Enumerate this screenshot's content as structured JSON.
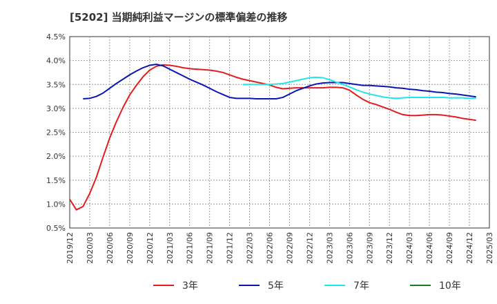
{
  "title": "[5202]  当期純利益マージンの標準偏差の推移",
  "chart_data": {
    "type": "line",
    "title": "[5202]  当期純利益マージンの標準偏差の推移",
    "xlabel": "",
    "ylabel": "",
    "ylim": [
      0.5,
      4.5
    ],
    "yticks": [
      "0.5%",
      "1.0%",
      "1.5%",
      "2.0%",
      "2.5%",
      "3.0%",
      "3.5%",
      "4.0%",
      "4.5%"
    ],
    "ytick_values": [
      0.5,
      1.0,
      1.5,
      2.0,
      2.5,
      3.0,
      3.5,
      4.0,
      4.5
    ],
    "xticks": [
      "2019/12",
      "2020/03",
      "2020/06",
      "2020/09",
      "2020/12",
      "2021/03",
      "2021/06",
      "2021/09",
      "2021/12",
      "2022/03",
      "2022/06",
      "2022/09",
      "2022/12",
      "2023/03",
      "2023/06",
      "2023/09",
      "2023/12",
      "2024/03",
      "2024/06",
      "2024/09",
      "2024/12",
      "2025/03"
    ],
    "grid": true,
    "legend_position": "bottom",
    "series": [
      {
        "name": "3年",
        "color": "#e41a1c",
        "points": [
          [
            "2019/12",
            1.1
          ],
          [
            "2020/01",
            0.88
          ],
          [
            "2020/02",
            0.95
          ],
          [
            "2020/03",
            1.22
          ],
          [
            "2020/04",
            1.56
          ],
          [
            "2020/05",
            1.98
          ],
          [
            "2020/06",
            2.38
          ],
          [
            "2020/07",
            2.72
          ],
          [
            "2020/08",
            3.02
          ],
          [
            "2020/09",
            3.28
          ],
          [
            "2020/10",
            3.48
          ],
          [
            "2020/11",
            3.66
          ],
          [
            "2020/12",
            3.8
          ],
          [
            "2021/01",
            3.88
          ],
          [
            "2021/02",
            3.91
          ],
          [
            "2021/03",
            3.9
          ],
          [
            "2021/04",
            3.88
          ],
          [
            "2021/05",
            3.85
          ],
          [
            "2021/06",
            3.83
          ],
          [
            "2021/07",
            3.82
          ],
          [
            "2021/08",
            3.81
          ],
          [
            "2021/09",
            3.8
          ],
          [
            "2021/10",
            3.78
          ],
          [
            "2021/11",
            3.75
          ],
          [
            "2021/12",
            3.7
          ],
          [
            "2022/01",
            3.65
          ],
          [
            "2022/02",
            3.61
          ],
          [
            "2022/03",
            3.58
          ],
          [
            "2022/04",
            3.55
          ],
          [
            "2022/05",
            3.52
          ],
          [
            "2022/06",
            3.49
          ],
          [
            "2022/07",
            3.44
          ],
          [
            "2022/08",
            3.41
          ],
          [
            "2022/09",
            3.42
          ],
          [
            "2022/10",
            3.43
          ],
          [
            "2022/11",
            3.43
          ],
          [
            "2022/12",
            3.43
          ],
          [
            "2023/01",
            3.43
          ],
          [
            "2023/02",
            3.43
          ],
          [
            "2023/03",
            3.44
          ],
          [
            "2023/04",
            3.44
          ],
          [
            "2023/05",
            3.43
          ],
          [
            "2023/06",
            3.38
          ],
          [
            "2023/07",
            3.28
          ],
          [
            "2023/08",
            3.19
          ],
          [
            "2023/09",
            3.12
          ],
          [
            "2023/10",
            3.08
          ],
          [
            "2023/11",
            3.03
          ],
          [
            "2023/12",
            2.98
          ],
          [
            "2024/01",
            2.92
          ],
          [
            "2024/02",
            2.87
          ],
          [
            "2024/03",
            2.85
          ],
          [
            "2024/04",
            2.85
          ],
          [
            "2024/05",
            2.86
          ],
          [
            "2024/06",
            2.87
          ],
          [
            "2024/07",
            2.87
          ],
          [
            "2024/08",
            2.86
          ],
          [
            "2024/09",
            2.84
          ],
          [
            "2024/10",
            2.82
          ],
          [
            "2024/11",
            2.79
          ],
          [
            "2024/12",
            2.77
          ],
          [
            "2025/01",
            2.75
          ]
        ]
      },
      {
        "name": "5年",
        "color": "#0a14b4",
        "points": [
          [
            "2020/02",
            3.2
          ],
          [
            "2020/03",
            3.21
          ],
          [
            "2020/04",
            3.25
          ],
          [
            "2020/05",
            3.32
          ],
          [
            "2020/06",
            3.42
          ],
          [
            "2020/07",
            3.52
          ],
          [
            "2020/08",
            3.61
          ],
          [
            "2020/09",
            3.7
          ],
          [
            "2020/10",
            3.78
          ],
          [
            "2020/11",
            3.85
          ],
          [
            "2020/12",
            3.9
          ],
          [
            "2021/01",
            3.92
          ],
          [
            "2021/02",
            3.89
          ],
          [
            "2021/03",
            3.82
          ],
          [
            "2021/04",
            3.75
          ],
          [
            "2021/05",
            3.68
          ],
          [
            "2021/06",
            3.61
          ],
          [
            "2021/07",
            3.55
          ],
          [
            "2021/08",
            3.49
          ],
          [
            "2021/09",
            3.42
          ],
          [
            "2021/10",
            3.35
          ],
          [
            "2021/11",
            3.29
          ],
          [
            "2021/12",
            3.23
          ],
          [
            "2022/01",
            3.21
          ],
          [
            "2022/02",
            3.21
          ],
          [
            "2022/03",
            3.21
          ],
          [
            "2022/04",
            3.2
          ],
          [
            "2022/05",
            3.2
          ],
          [
            "2022/06",
            3.2
          ],
          [
            "2022/07",
            3.2
          ],
          [
            "2022/08",
            3.23
          ],
          [
            "2022/09",
            3.3
          ],
          [
            "2022/10",
            3.37
          ],
          [
            "2022/11",
            3.42
          ],
          [
            "2022/12",
            3.47
          ],
          [
            "2023/01",
            3.51
          ],
          [
            "2023/02",
            3.53
          ],
          [
            "2023/03",
            3.54
          ],
          [
            "2023/04",
            3.54
          ],
          [
            "2023/05",
            3.54
          ],
          [
            "2023/06",
            3.52
          ],
          [
            "2023/07",
            3.5
          ],
          [
            "2023/08",
            3.48
          ],
          [
            "2023/09",
            3.48
          ],
          [
            "2023/10",
            3.47
          ],
          [
            "2023/11",
            3.46
          ],
          [
            "2023/12",
            3.45
          ],
          [
            "2024/01",
            3.43
          ],
          [
            "2024/02",
            3.42
          ],
          [
            "2024/03",
            3.4
          ],
          [
            "2024/04",
            3.39
          ],
          [
            "2024/05",
            3.37
          ],
          [
            "2024/06",
            3.36
          ],
          [
            "2024/07",
            3.34
          ],
          [
            "2024/08",
            3.33
          ],
          [
            "2024/09",
            3.31
          ],
          [
            "2024/10",
            3.3
          ],
          [
            "2024/11",
            3.28
          ],
          [
            "2024/12",
            3.26
          ],
          [
            "2025/01",
            3.24
          ]
        ]
      },
      {
        "name": "7年",
        "color": "#1ee6ee",
        "points": [
          [
            "2022/02",
            3.5
          ],
          [
            "2022/03",
            3.5
          ],
          [
            "2022/04",
            3.5
          ],
          [
            "2022/05",
            3.5
          ],
          [
            "2022/06",
            3.5
          ],
          [
            "2022/07",
            3.51
          ],
          [
            "2022/08",
            3.52
          ],
          [
            "2022/09",
            3.55
          ],
          [
            "2022/10",
            3.58
          ],
          [
            "2022/11",
            3.61
          ],
          [
            "2022/12",
            3.64
          ],
          [
            "2023/01",
            3.65
          ],
          [
            "2023/02",
            3.64
          ],
          [
            "2023/03",
            3.6
          ],
          [
            "2023/04",
            3.55
          ],
          [
            "2023/05",
            3.5
          ],
          [
            "2023/06",
            3.45
          ],
          [
            "2023/07",
            3.39
          ],
          [
            "2023/08",
            3.34
          ],
          [
            "2023/09",
            3.3
          ],
          [
            "2023/10",
            3.27
          ],
          [
            "2023/11",
            3.24
          ],
          [
            "2023/12",
            3.22
          ],
          [
            "2024/01",
            3.21
          ],
          [
            "2024/02",
            3.22
          ],
          [
            "2024/03",
            3.23
          ],
          [
            "2024/04",
            3.23
          ],
          [
            "2024/05",
            3.23
          ],
          [
            "2024/06",
            3.23
          ],
          [
            "2024/07",
            3.23
          ],
          [
            "2024/08",
            3.23
          ],
          [
            "2024/09",
            3.22
          ],
          [
            "2024/10",
            3.22
          ],
          [
            "2024/11",
            3.22
          ],
          [
            "2024/12",
            3.21
          ],
          [
            "2025/01",
            3.21
          ]
        ]
      },
      {
        "name": "10年",
        "color": "#1a7a1a",
        "points": []
      }
    ]
  }
}
